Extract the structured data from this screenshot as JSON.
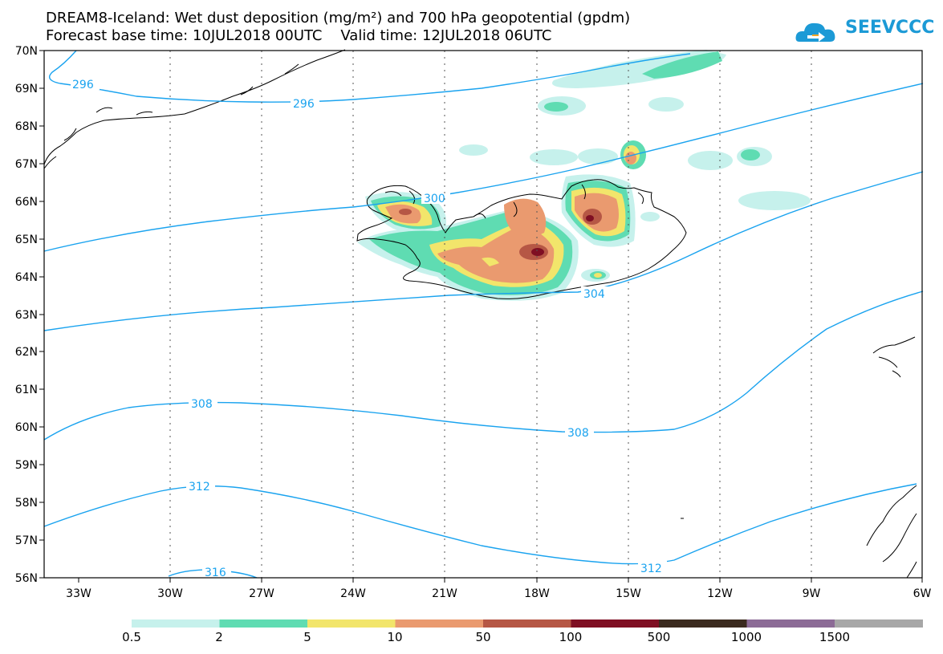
{
  "title": {
    "line1": "DREAM8-Iceland: Wet dust deposition (mg/m²) and 700 hPa geopotential (gpdm)",
    "line2": "Forecast base time: 10JUL2018 00UTC    Valid time: 12JUL2018 06UTC"
  },
  "logo": {
    "text": "SEEVCCC",
    "icon": "cloud-arrow-icon",
    "color": "#1c9ad6"
  },
  "map": {
    "lat_labels": [
      "70N",
      "69N",
      "68N",
      "67N",
      "66N",
      "65N",
      "64N",
      "63N",
      "62N",
      "61N",
      "60N",
      "59N",
      "58N",
      "57N",
      "56N"
    ],
    "lon_labels": [
      "33W",
      "30W",
      "27W",
      "24W",
      "21W",
      "18W",
      "15W",
      "12W",
      "9W",
      "6W"
    ],
    "contour_labels": [
      "296",
      "296",
      "300",
      "304",
      "308",
      "308",
      "312",
      "312",
      "316"
    ],
    "contour_color": "#1aa3ef"
  },
  "colorbar": {
    "labels": [
      "0.5",
      "2",
      "5",
      "10",
      "50",
      "100",
      "500",
      "1000",
      "1500"
    ],
    "colors": [
      "#c6f1ec",
      "#5fdcb2",
      "#f2e56b",
      "#ea9a6f",
      "#b65745",
      "#7f0f23",
      "#3b2a1e",
      "#8c6b96",
      "#a7a7a7"
    ]
  }
}
